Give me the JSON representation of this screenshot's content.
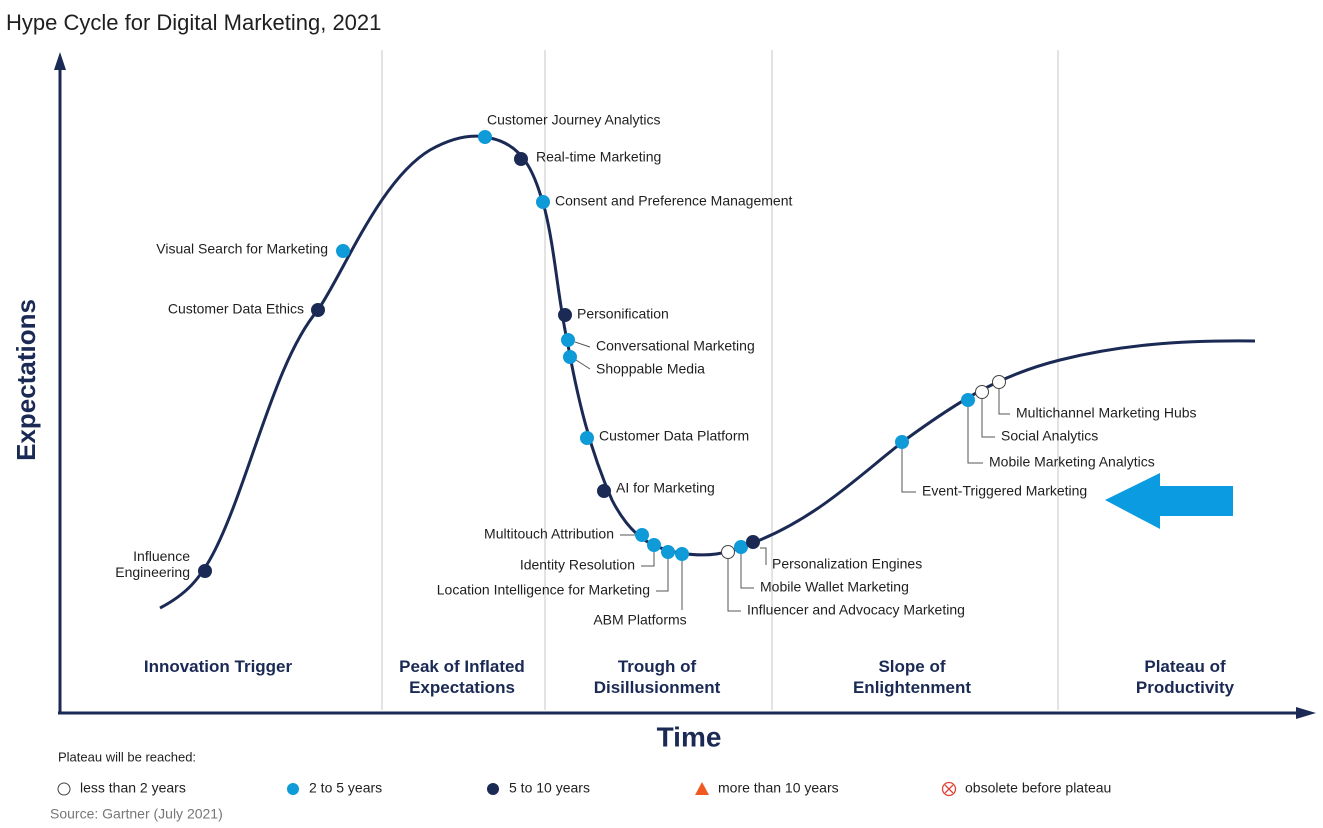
{
  "title": "Hype Cycle for Digital Marketing, 2021",
  "y_axis_label": "Expectations",
  "x_axis_label": "Time",
  "phases": [
    "Innovation Trigger",
    "Peak of Inflated Expectations",
    "Trough of Disillusionment",
    "Slope of Enlightenment",
    "Plateau of Productivity"
  ],
  "innovations": [
    {
      "label": "Influence Engineering"
    },
    {
      "label": "Customer Data Ethics"
    },
    {
      "label": "Visual Search for Marketing"
    },
    {
      "label": "Customer Journey Analytics"
    },
    {
      "label": "Real-time Marketing"
    },
    {
      "label": "Consent and Preference Management"
    },
    {
      "label": "Personification"
    },
    {
      "label": "Conversational Marketing"
    },
    {
      "label": "Shoppable Media"
    },
    {
      "label": "Customer Data Platform"
    },
    {
      "label": "AI for Marketing"
    },
    {
      "label": "Multitouch Attribution"
    },
    {
      "label": "Identity Resolution"
    },
    {
      "label": "Location Intelligence for Marketing"
    },
    {
      "label": "ABM Platforms"
    },
    {
      "label": "Influencer and Advocacy Marketing"
    },
    {
      "label": "Mobile Wallet Marketing"
    },
    {
      "label": "Personalization Engines"
    },
    {
      "label": "Event-Triggered Marketing"
    },
    {
      "label": "Mobile Marketing Analytics"
    },
    {
      "label": "Social Analytics"
    },
    {
      "label": "Multichannel Marketing Hubs"
    }
  ],
  "legend": {
    "title": "Plateau will be reached:",
    "items": [
      "less than 2 years",
      "2 to 5 years",
      "5 to 10 years",
      "more than 10 years",
      "obsolete before plateau"
    ]
  },
  "source": "Source: Gartner (July 2021)"
}
